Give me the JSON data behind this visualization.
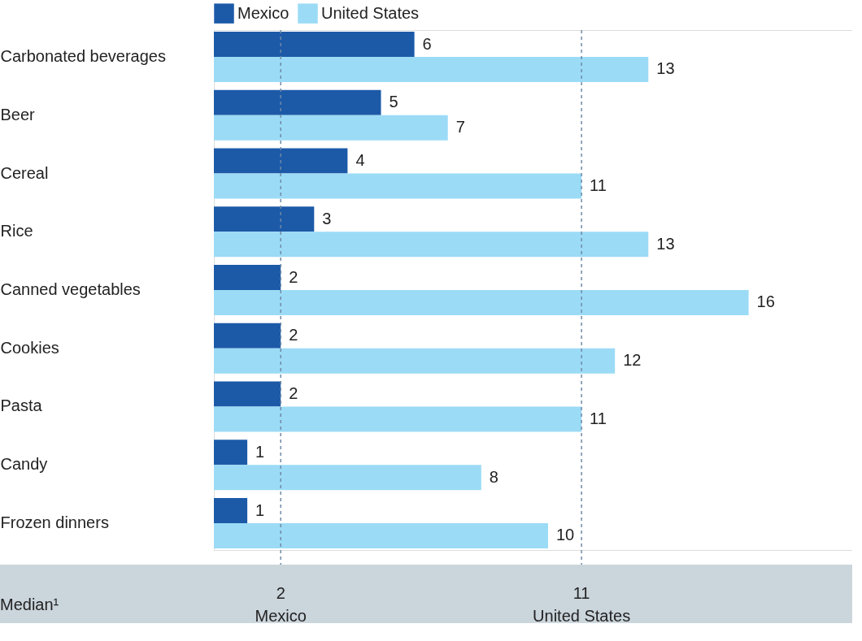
{
  "chart_data": {
    "type": "bar",
    "orientation": "horizontal",
    "categories": [
      "Carbonated beverages",
      "Beer",
      "Cereal",
      "Rice",
      "Canned vegetables",
      "Cookies",
      "Pasta",
      "Candy",
      "Frozen dinners"
    ],
    "series": [
      {
        "name": "Mexico",
        "color": "#1c5aa8",
        "values": [
          6,
          5,
          4,
          3,
          2,
          2,
          2,
          1,
          1
        ]
      },
      {
        "name": "United States",
        "color": "#9bdbf6",
        "values": [
          13,
          7,
          11,
          13,
          16,
          12,
          11,
          8,
          10
        ]
      }
    ],
    "xlim": [
      0,
      19.1
    ],
    "tick_labels": "y",
    "data_labels": true,
    "legend": "top",
    "ref_lines": [
      {
        "axis": "x",
        "value": 2,
        "label": "2\nMexico",
        "color": "#6f8aa6",
        "line_style": "dashed"
      },
      {
        "axis": "x",
        "value": 11,
        "label": "11\nUnited States",
        "color": "#6f8aa6",
        "line_style": "dashed"
      }
    ],
    "annotations": [
      "Median¹"
    ]
  }
}
